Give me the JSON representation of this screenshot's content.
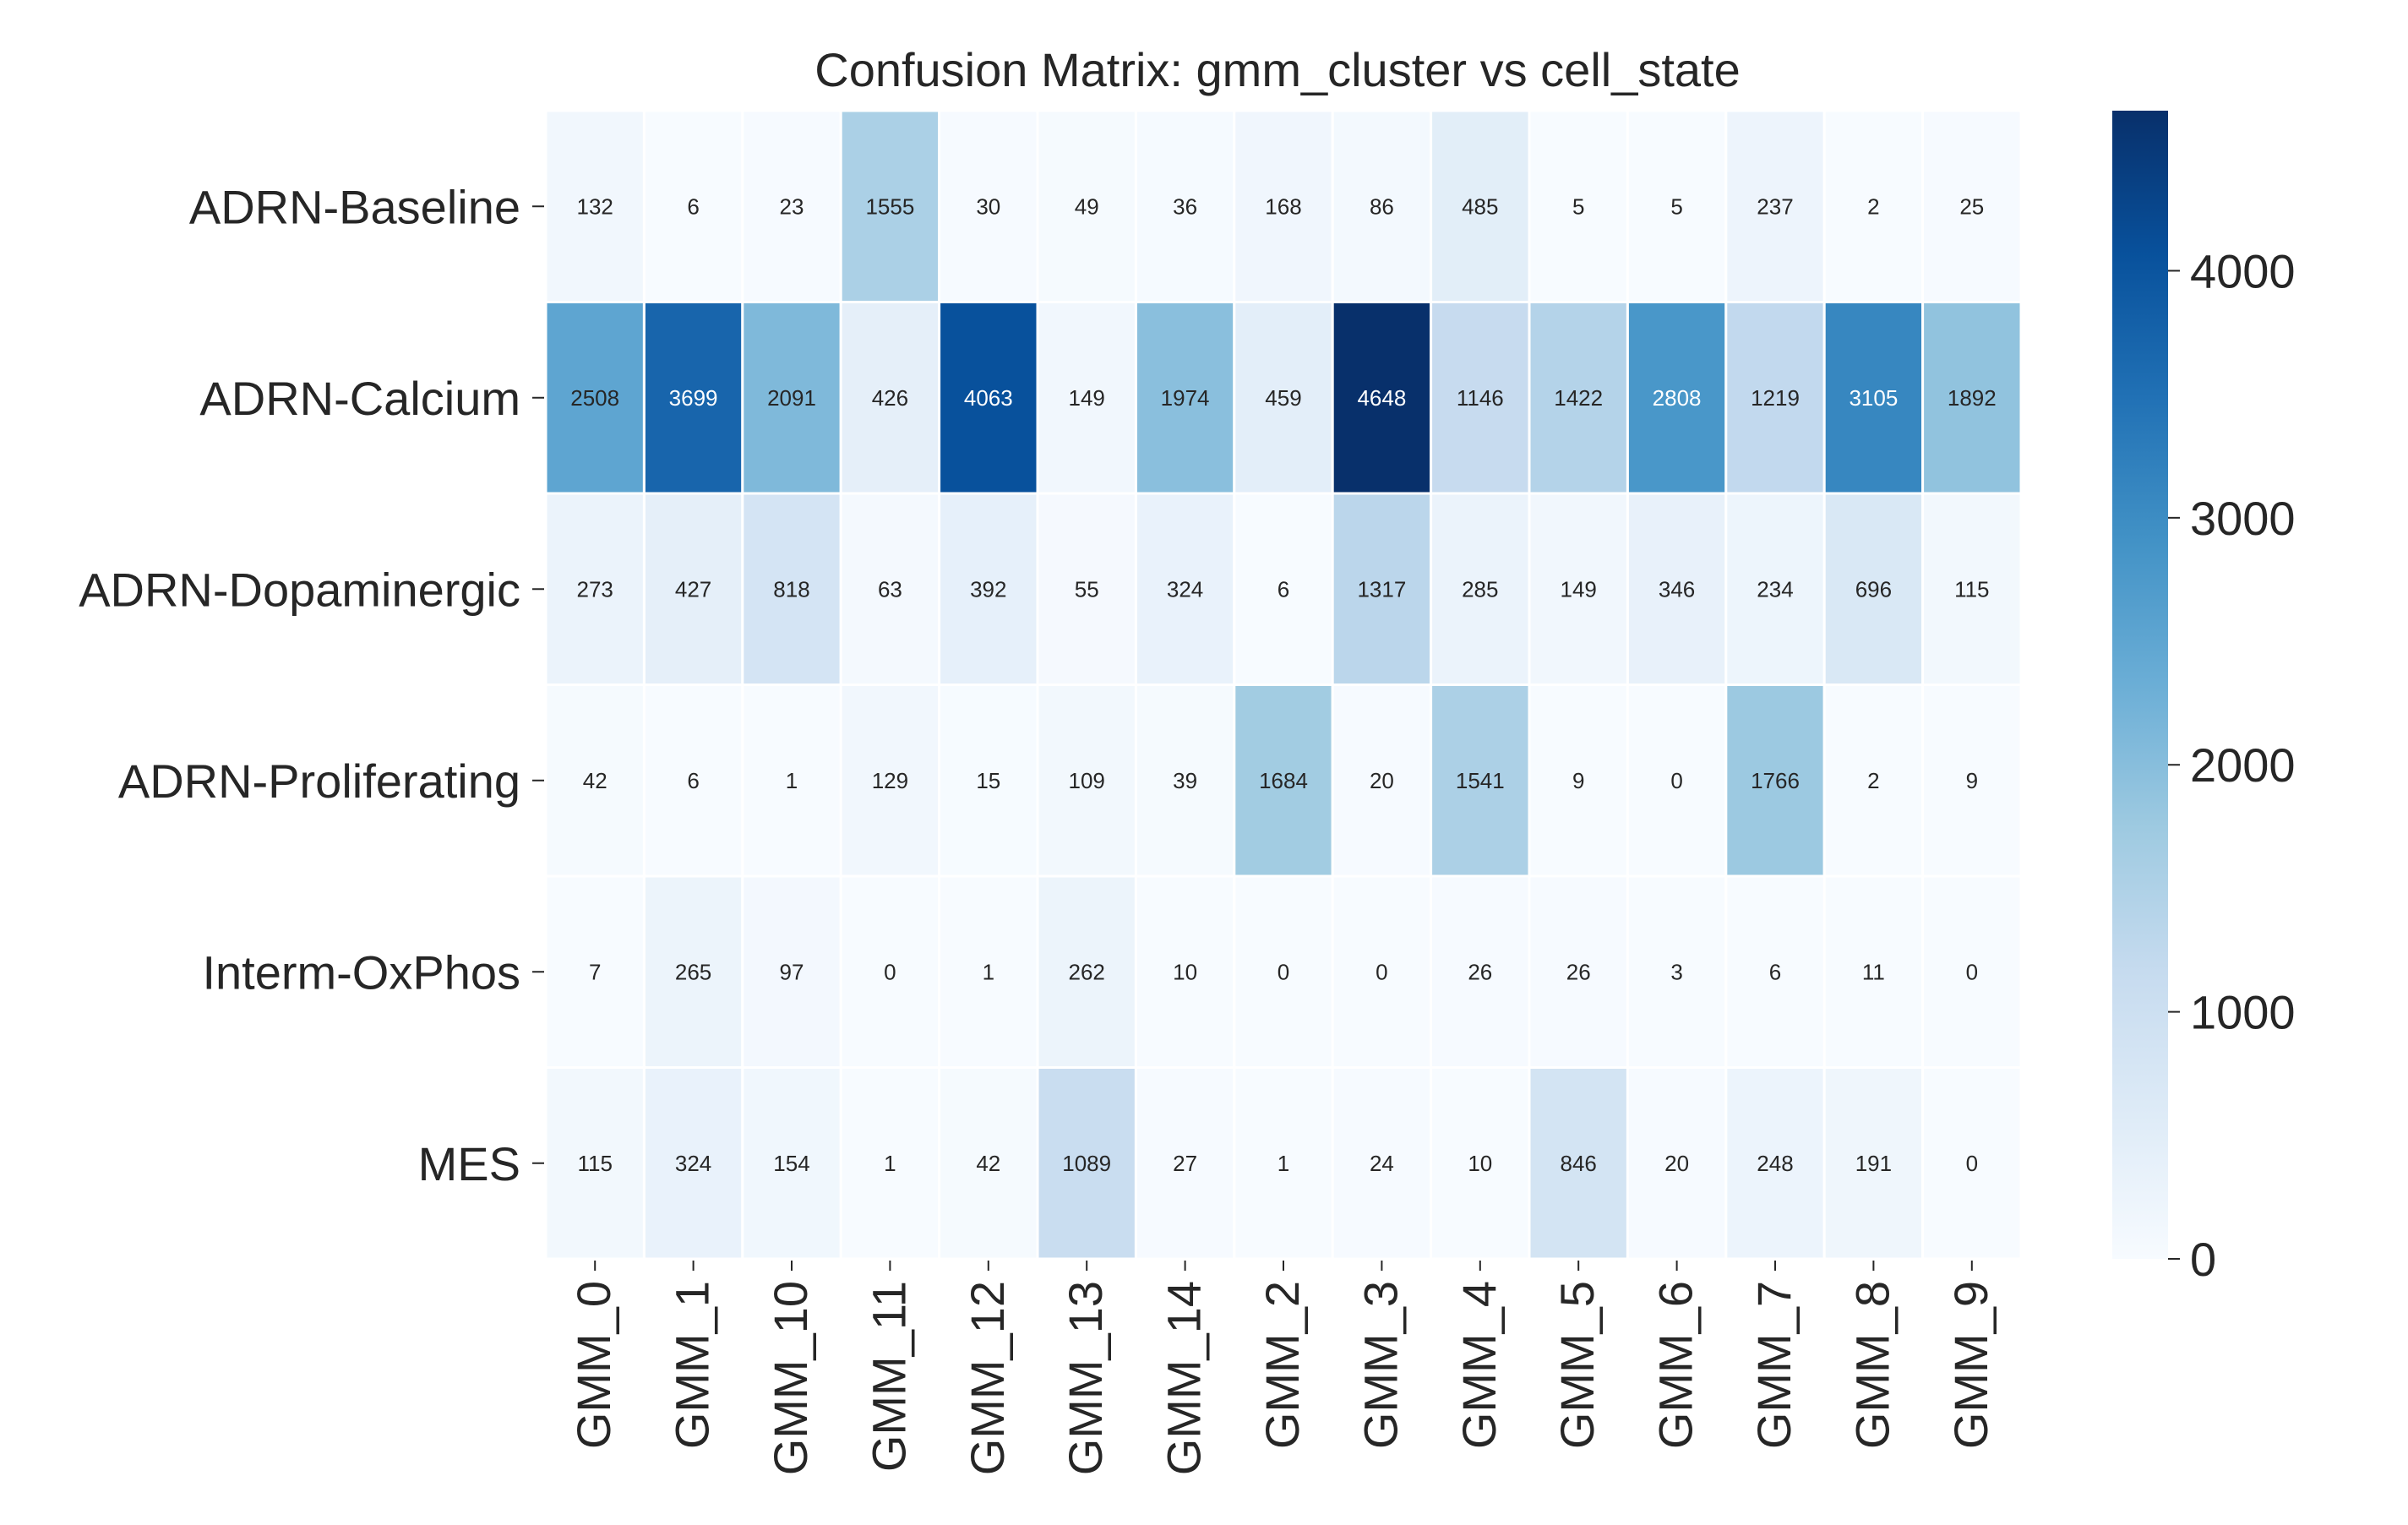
{
  "chart_data": {
    "type": "heatmap",
    "title": "Confusion Matrix: gmm_cluster vs cell_state",
    "xlabel": "",
    "ylabel": "",
    "rows": [
      "ADRN-Baseline",
      "ADRN-Calcium",
      "ADRN-Dopaminergic",
      "ADRN-Proliferating",
      "Interm-OxPhos",
      "MES"
    ],
    "columns": [
      "GMM_0",
      "GMM_1",
      "GMM_10",
      "GMM_11",
      "GMM_12",
      "GMM_13",
      "GMM_14",
      "GMM_2",
      "GMM_3",
      "GMM_4",
      "GMM_5",
      "GMM_6",
      "GMM_7",
      "GMM_8",
      "GMM_9"
    ],
    "values": [
      [
        132,
        6,
        23,
        1555,
        30,
        49,
        36,
        168,
        86,
        485,
        5,
        5,
        237,
        2,
        25
      ],
      [
        2508,
        3699,
        2091,
        426,
        4063,
        149,
        1974,
        459,
        4648,
        1146,
        1422,
        2808,
        1219,
        3105,
        1892
      ],
      [
        273,
        427,
        818,
        63,
        392,
        55,
        324,
        6,
        1317,
        285,
        149,
        346,
        234,
        696,
        115
      ],
      [
        42,
        6,
        1,
        129,
        15,
        109,
        39,
        1684,
        20,
        1541,
        9,
        0,
        1766,
        2,
        9
      ],
      [
        7,
        265,
        97,
        0,
        1,
        262,
        10,
        0,
        0,
        26,
        26,
        3,
        6,
        11,
        0
      ],
      [
        115,
        324,
        154,
        1,
        42,
        1089,
        27,
        1,
        24,
        10,
        846,
        20,
        248,
        191,
        0
      ]
    ],
    "colormap": "Blues",
    "color_range": [
      0,
      4648
    ],
    "colorbar_ticks": [
      0,
      1000,
      2000,
      3000,
      4000
    ],
    "annotations": true,
    "colors": {
      "low": "#f7fbff",
      "high": "#08306b",
      "cell_border": "#ffffff",
      "text": "#262626"
    }
  }
}
